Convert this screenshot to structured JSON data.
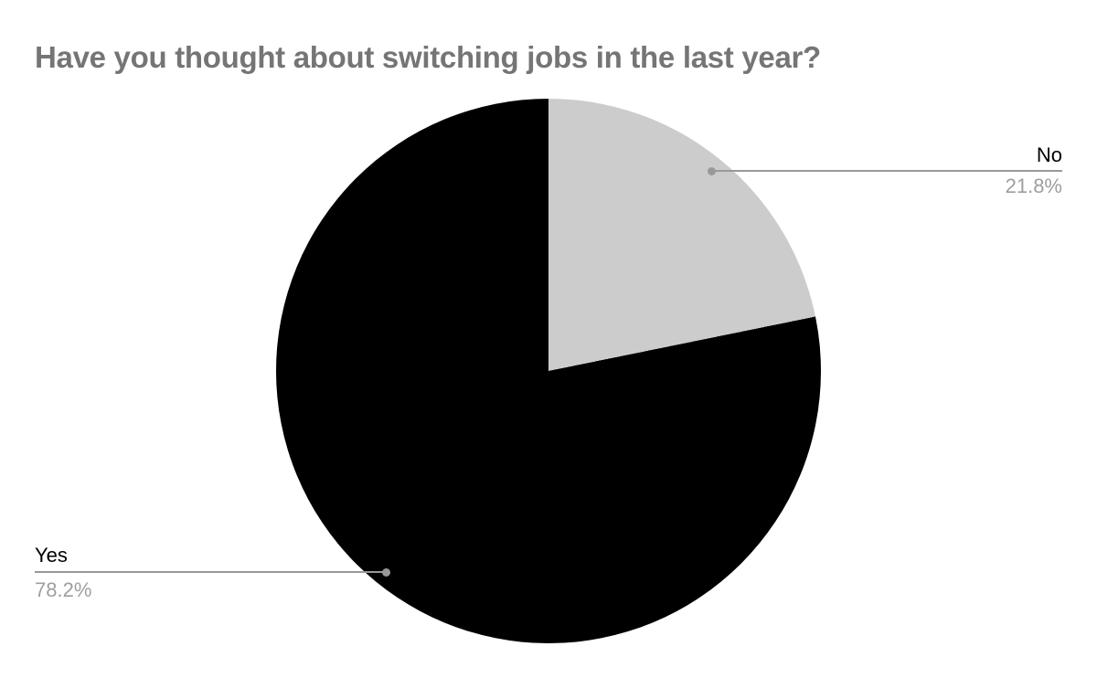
{
  "chart": {
    "title": "Have you thought about switching jobs in the last year?"
  },
  "chart_data": {
    "type": "pie",
    "title": "Have you thought about switching jobs in the last year?",
    "categories": [
      "No",
      "Yes"
    ],
    "values": [
      21.8,
      78.2
    ],
    "value_labels": [
      "21.8%",
      "78.2%"
    ],
    "colors": [
      "#cccccc",
      "#000000"
    ],
    "start_angle_deg": 0,
    "direction": "clockwise",
    "legend_position": "labeled-callouts",
    "background": "#ffffff"
  },
  "colors": {
    "background": "#ffffff",
    "title_text": "#757575",
    "label_name": "#000000",
    "label_percent": "#9e9e9e",
    "leader_line": "#999999",
    "slice_no": "#cccccc",
    "slice_yes": "#000000"
  }
}
